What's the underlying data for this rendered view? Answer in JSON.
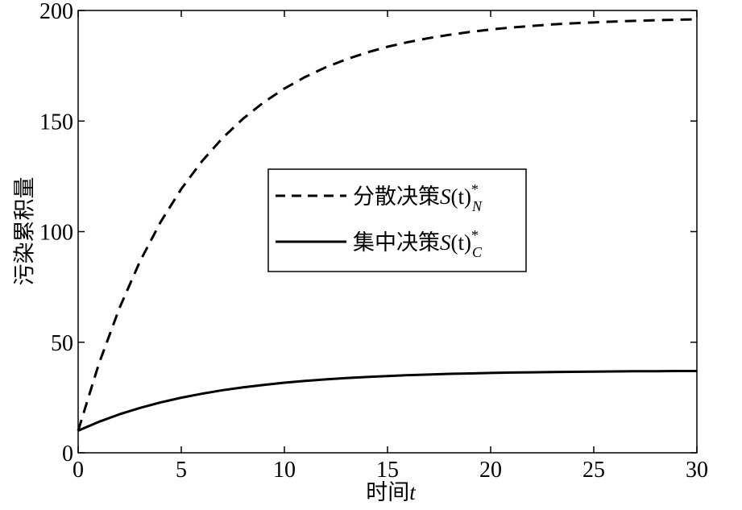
{
  "chart_data": {
    "type": "line",
    "title": "",
    "xlabel": {
      "main": "时间",
      "var": "t"
    },
    "ylabel": "污染累积量",
    "xlim": [
      0,
      30
    ],
    "ylim": [
      0,
      200
    ],
    "x_ticks": [
      0,
      5,
      10,
      15,
      20,
      25,
      30
    ],
    "y_ticks": [
      0,
      50,
      100,
      150,
      200
    ],
    "grid": false,
    "legend_position": "center",
    "x": [
      0,
      1,
      2,
      3,
      4,
      5,
      6,
      7,
      8,
      9,
      10,
      11,
      12,
      13,
      14,
      15,
      16,
      17,
      18,
      19,
      20,
      21,
      22,
      23,
      24,
      25,
      26,
      27,
      28,
      29,
      30
    ],
    "series": [
      {
        "legend": {
          "prefix": "分散决策",
          "symbol": "S",
          "paren": "(t)",
          "sup": "*",
          "sub": "N"
        },
        "style": "dashed",
        "color": "#000000",
        "values": [
          10,
          40.1,
          65.4,
          86.6,
          104.4,
          119.3,
          131.8,
          142.3,
          151.1,
          158.5,
          164.7,
          169.9,
          174.3,
          177.9,
          181.0,
          183.6,
          185.7,
          187.5,
          189.0,
          190.3,
          191.4,
          192.3,
          193.0,
          193.7,
          194.2,
          194.6,
          195.0,
          195.3,
          195.6,
          195.8,
          196.0
        ]
      },
      {
        "legend": {
          "prefix": "集中决策",
          "symbol": "S",
          "paren": "(t)",
          "sup": "*",
          "sub": "C"
        },
        "style": "solid",
        "color": "#000000",
        "values": [
          10,
          14.0,
          17.4,
          20.3,
          22.8,
          24.9,
          26.7,
          28.3,
          29.6,
          30.7,
          31.7,
          32.5,
          33.2,
          33.8,
          34.3,
          34.7,
          35.1,
          35.4,
          35.7,
          35.9,
          36.1,
          36.3,
          36.4,
          36.5,
          36.6,
          36.7,
          36.8,
          36.9,
          36.9,
          37.0,
          37.0
        ]
      }
    ]
  }
}
